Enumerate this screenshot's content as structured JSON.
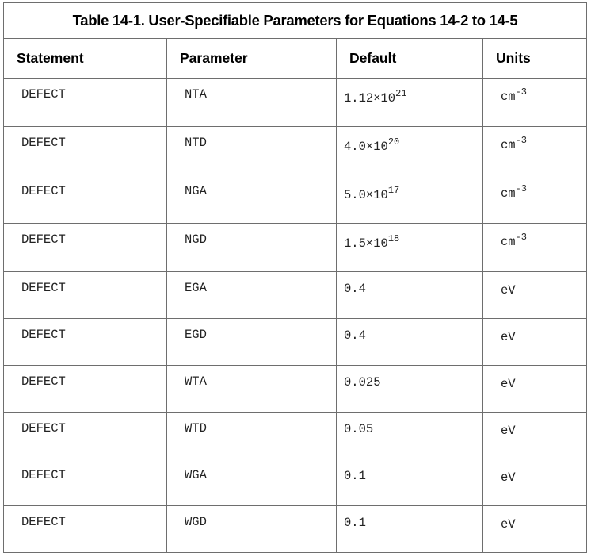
{
  "caption": "Table 14-1.  User-Specifiable Parameters for Equations 14-2 to 14-5",
  "headers": [
    "Statement",
    "Parameter",
    "Default",
    "Units"
  ],
  "rows": [
    {
      "statement": "DEFECT",
      "parameter": "NTA",
      "default": {
        "mantissa": "1.12×10",
        "exp": "21"
      },
      "unit": {
        "base": "cm",
        "exp": "-3"
      }
    },
    {
      "statement": "DEFECT",
      "parameter": "NTD",
      "default": {
        "mantissa": "4.0×10",
        "exp": "20"
      },
      "unit": {
        "base": "cm",
        "exp": "-3"
      }
    },
    {
      "statement": "DEFECT",
      "parameter": "NGA",
      "default": {
        "mantissa": "5.0×10",
        "exp": "17"
      },
      "unit": {
        "base": "cm",
        "exp": "-3"
      }
    },
    {
      "statement": "DEFECT",
      "parameter": "NGD",
      "default": {
        "mantissa": "1.5×10",
        "exp": "18"
      },
      "unit": {
        "base": "cm",
        "exp": "-3"
      }
    },
    {
      "statement": "DEFECT",
      "parameter": "EGA",
      "default": {
        "mantissa": "0.4",
        "exp": ""
      },
      "unit": {
        "base": "eV",
        "exp": ""
      }
    },
    {
      "statement": "DEFECT",
      "parameter": "EGD",
      "default": {
        "mantissa": "0.4",
        "exp": ""
      },
      "unit": {
        "base": "eV",
        "exp": ""
      }
    },
    {
      "statement": "DEFECT",
      "parameter": "WTA",
      "default": {
        "mantissa": "0.025",
        "exp": ""
      },
      "unit": {
        "base": "eV",
        "exp": ""
      }
    },
    {
      "statement": "DEFECT",
      "parameter": "WTD",
      "default": {
        "mantissa": "0.05",
        "exp": ""
      },
      "unit": {
        "base": "eV",
        "exp": ""
      }
    },
    {
      "statement": "DEFECT",
      "parameter": "WGA",
      "default": {
        "mantissa": "0.1",
        "exp": ""
      },
      "unit": {
        "base": "eV",
        "exp": ""
      }
    },
    {
      "statement": "DEFECT",
      "parameter": "WGD",
      "default": {
        "mantissa": "0.1",
        "exp": ""
      },
      "unit": {
        "base": "eV",
        "exp": ""
      }
    }
  ]
}
